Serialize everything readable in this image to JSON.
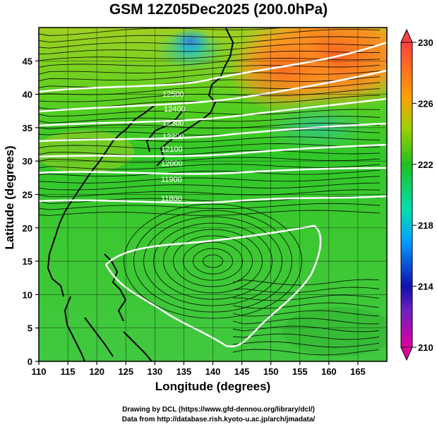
{
  "title": "GSM 12Z05Dec2025 (200.0hPa)",
  "xlabel": "Longitude (degrees)",
  "ylabel": "Latitude  (degrees)",
  "credits": {
    "line1": "Drawing by DCL (https://www.gfd-dennou.org/library/dcl/)",
    "line2": "Data from http://database.rish.kyoto-u.ac.jp/arch/jmadata/"
  },
  "chart_data": {
    "type": "heatmap",
    "title": "GSM 12Z05Dec2025 (200.0hPa)",
    "xlabel": "Longitude (degrees)",
    "ylabel": "Latitude  (degrees)",
    "xlim": [
      110,
      170
    ],
    "ylim": [
      0,
      50
    ],
    "x_ticks": [
      110,
      115,
      120,
      125,
      130,
      135,
      140,
      145,
      150,
      155,
      160,
      165
    ],
    "y_ticks": [
      0,
      5,
      10,
      15,
      20,
      25,
      30,
      35,
      40,
      45
    ],
    "grid": true,
    "colorbar": {
      "ticks": [
        210,
        214,
        218,
        222,
        226,
        230
      ],
      "range": [
        210,
        230
      ],
      "colors": [
        "#e000a0",
        "#1010b0",
        "#00a0ff",
        "#00e0b0",
        "#20c020",
        "#a0d000",
        "#ffa000",
        "#ff4040"
      ]
    },
    "contour_labels": [
      "12500",
      "12400",
      "12300",
      "12200",
      "12100",
      "12000",
      "11900",
      "11800"
    ],
    "overlays": [
      "coastlines",
      "wind streamlines",
      "height contours"
    ]
  }
}
